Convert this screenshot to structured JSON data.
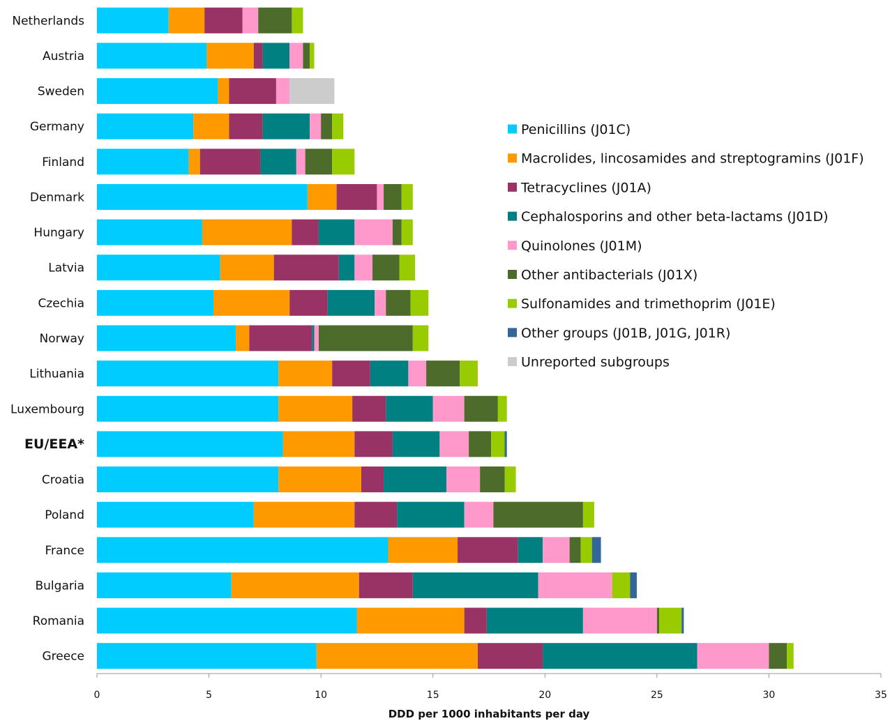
{
  "chart_data": {
    "type": "bar",
    "orientation": "horizontal",
    "stacked": true,
    "xlabel": "DDD per 1000 inhabitants per day",
    "xlim": [
      0,
      35
    ],
    "xticks": [
      0,
      5,
      10,
      15,
      20,
      25,
      30,
      35
    ],
    "grid": false,
    "legend_position": "right",
    "categories": [
      "Netherlands",
      "Austria",
      "Sweden",
      "Germany",
      "Finland",
      "Denmark",
      "Hungary",
      "Latvia",
      "Czechia",
      "Norway",
      "Lithuania",
      "Luxembourg",
      "EU/EEA*",
      "Croatia",
      "Poland",
      "France",
      "Bulgaria",
      "Romania",
      "Greece"
    ],
    "highlight_category": "EU/EEA*",
    "series": [
      {
        "name": "Penicillins (J01C)",
        "color": "#00ccff",
        "values": [
          3.2,
          4.9,
          5.4,
          4.3,
          4.1,
          9.4,
          4.7,
          5.5,
          5.2,
          6.2,
          8.1,
          8.1,
          8.3,
          8.1,
          7.0,
          13.0,
          6.0,
          11.6,
          9.8
        ]
      },
      {
        "name": "Macrolides, lincosamides and streptogramins (J01F)",
        "color": "#ff9900",
        "values": [
          1.6,
          2.1,
          0.5,
          1.6,
          0.5,
          1.3,
          4.0,
          2.4,
          3.4,
          0.6,
          2.4,
          3.3,
          3.2,
          3.7,
          4.5,
          3.1,
          5.7,
          4.8,
          7.2
        ]
      },
      {
        "name": "Tetracyclines (J01A)",
        "color": "#993366",
        "values": [
          1.7,
          0.4,
          2.1,
          1.5,
          2.7,
          1.8,
          1.2,
          2.9,
          1.7,
          2.8,
          1.7,
          1.5,
          1.7,
          1.0,
          1.9,
          2.7,
          2.4,
          1.0,
          2.9
        ]
      },
      {
        "name": "Cephalosporins and other beta-lactams (J01D)",
        "color": "#008080",
        "values": [
          0.0,
          1.2,
          0.0,
          2.1,
          1.6,
          0.0,
          1.6,
          0.7,
          2.1,
          0.1,
          1.7,
          2.1,
          2.1,
          2.8,
          3.0,
          1.1,
          5.6,
          4.3,
          6.9
        ]
      },
      {
        "name": "Quinolones (J01M)",
        "color": "#ff99cc",
        "values": [
          0.7,
          0.6,
          0.6,
          0.5,
          0.4,
          0.3,
          1.7,
          0.8,
          0.5,
          0.2,
          0.8,
          1.4,
          1.3,
          1.5,
          1.3,
          1.2,
          3.3,
          3.3,
          3.2
        ]
      },
      {
        "name": "Other antibacterials (J01X)",
        "color": "#4d6b2a",
        "values": [
          1.5,
          0.3,
          0.0,
          0.5,
          1.2,
          0.8,
          0.4,
          1.2,
          1.1,
          4.2,
          1.5,
          1.5,
          1.0,
          1.1,
          4.0,
          0.5,
          0.0,
          0.1,
          0.8
        ]
      },
      {
        "name": "Sulfonamides and trimethoprim (J01E)",
        "color": "#99cc00",
        "values": [
          0.5,
          0.2,
          0.0,
          0.5,
          1.0,
          0.5,
          0.5,
          0.7,
          0.8,
          0.7,
          0.8,
          0.4,
          0.6,
          0.5,
          0.5,
          0.5,
          0.8,
          1.0,
          0.3
        ]
      },
      {
        "name": "Other groups (J01B, J01G, J01R)",
        "color": "#336699",
        "values": [
          0.0,
          0.0,
          0.0,
          0.0,
          0.0,
          0.0,
          0.0,
          0.0,
          0.0,
          0.0,
          0.0,
          0.0,
          0.1,
          0.0,
          0.0,
          0.4,
          0.3,
          0.1,
          0.0
        ]
      },
      {
        "name": "Unreported subgroups",
        "color": "#cccccc",
        "values": [
          0.0,
          0.0,
          2.0,
          0.0,
          0.0,
          0.0,
          0.0,
          0.0,
          0.0,
          0.0,
          0.0,
          0.0,
          0.0,
          0.0,
          0.0,
          0.0,
          0.0,
          0.0,
          0.0
        ]
      }
    ]
  }
}
